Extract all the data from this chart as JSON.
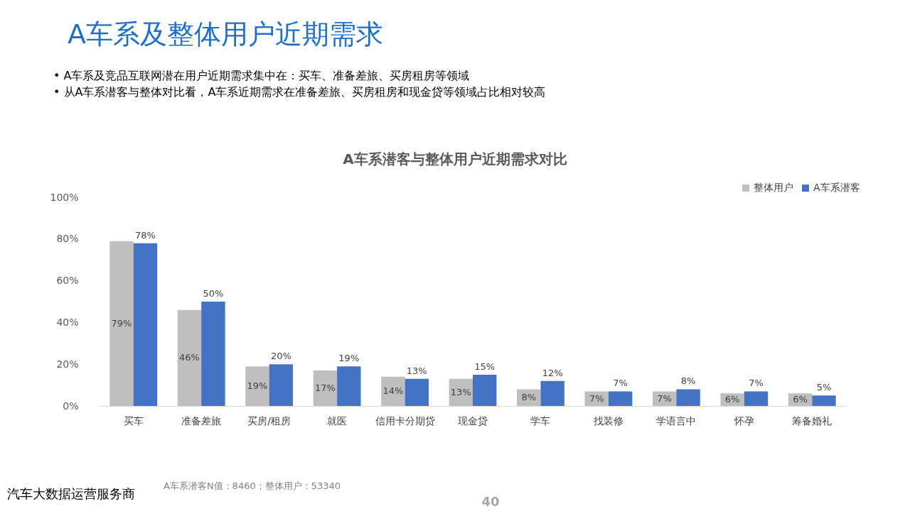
{
  "chart_data": {
    "type": "bar",
    "title": "A车系潜客与整体用户近期需求对比",
    "categories": [
      "买车",
      "准备差旅",
      "买房/租房",
      "就医",
      "信用卡分期贷",
      "现金贷",
      "学车",
      "找装修",
      "学语言中",
      "怀孕",
      "筹备婚礼"
    ],
    "series": [
      {
        "name": "整体用户",
        "color": "#bfbfbf",
        "values": [
          79,
          46,
          19,
          17,
          14,
          13,
          8,
          7,
          7,
          6,
          6
        ]
      },
      {
        "name": "A车系潜客",
        "color": "#4472c4",
        "values": [
          78,
          50,
          20,
          19,
          13,
          15,
          12,
          7,
          8,
          7,
          5
        ]
      }
    ],
    "ylim": [
      0,
      100
    ],
    "yticks": [
      {
        "value": 0,
        "label": "0%"
      },
      {
        "value": 20,
        "label": "20%"
      },
      {
        "value": 40,
        "label": "40%"
      },
      {
        "value": 60,
        "label": "60%"
      },
      {
        "value": 80,
        "label": "80%"
      },
      {
        "value": 100,
        "label": "100%"
      }
    ],
    "value_labels": [
      [
        "79%",
        "46%",
        "19%",
        "17%",
        "14%",
        "13%",
        "8%",
        "7%",
        "7%",
        "6%",
        "6%"
      ],
      [
        "78%",
        "50%",
        "20%",
        "19%",
        "13%",
        "15%",
        "12%",
        "7%",
        "8%",
        "7%",
        "5%"
      ]
    ],
    "legend": "top right",
    "grid": false,
    "annotations": [
      "A车系及整体用户近期需求",
      "•   A车系及竞品互联网潜在用户近期需求集中在：买车、准备差旅、买房租房等领域",
      "•   从A车系潜客与整体对比看，A车系近期需求在准备差旅、买房租房和现金贷等领域占比相对较高",
      "A车系潜客N值：8460；整体用户：53340",
      "汽车大数据运营服务商",
      "40"
    ]
  }
}
